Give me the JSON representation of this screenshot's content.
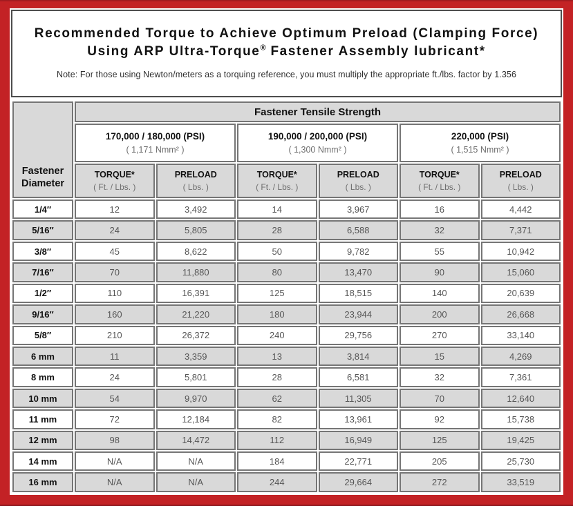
{
  "page": {
    "border_color": "#c32225",
    "title_line1": "Recommended Torque to Achieve Optimum Preload (Clamping Force)",
    "title_line2_prefix": "Using ARP Ultra-Torque",
    "title_line2_reg": "®",
    "title_line2_suffix": " Fastener Assembly lubricant*",
    "note": "Note: For those using Newton/meters as a torquing reference, you must multiply the appropriate ft./lbs. factor by 1.356"
  },
  "table": {
    "corner_header": "Fastener Diameter",
    "tensile_header": "Fastener Tensile Strength",
    "groups": [
      {
        "psi": "170,000 / 180,000 (PSI)",
        "nmm": "( 1,171 Nmm² )"
      },
      {
        "psi": "190,000 / 200,000 (PSI)",
        "nmm": "( 1,300 Nmm² )"
      },
      {
        "psi": "220,000 (PSI)",
        "nmm": "( 1,515 Nmm² )"
      }
    ],
    "sub": {
      "torque_label": "TORQUE*",
      "torque_unit": "( Ft. / Lbs. )",
      "preload_label": "PRELOAD",
      "preload_unit": "( Lbs. )"
    },
    "rows": [
      {
        "diameter": "1/4″",
        "values": [
          "12",
          "3,492",
          "14",
          "3,967",
          "16",
          "4,442"
        ]
      },
      {
        "diameter": "5/16″",
        "values": [
          "24",
          "5,805",
          "28",
          "6,588",
          "32",
          "7,371"
        ]
      },
      {
        "diameter": "3/8″",
        "values": [
          "45",
          "8,622",
          "50",
          "9,782",
          "55",
          "10,942"
        ]
      },
      {
        "diameter": "7/16″",
        "values": [
          "70",
          "11,880",
          "80",
          "13,470",
          "90",
          "15,060"
        ]
      },
      {
        "diameter": "1/2″",
        "values": [
          "110",
          "16,391",
          "125",
          "18,515",
          "140",
          "20,639"
        ]
      },
      {
        "diameter": "9/16″",
        "values": [
          "160",
          "21,220",
          "180",
          "23,944",
          "200",
          "26,668"
        ]
      },
      {
        "diameter": "5/8″",
        "values": [
          "210",
          "26,372",
          "240",
          "29,756",
          "270",
          "33,140"
        ]
      },
      {
        "diameter": "6 mm",
        "values": [
          "11",
          "3,359",
          "13",
          "3,814",
          "15",
          "4,269"
        ]
      },
      {
        "diameter": "8 mm",
        "values": [
          "24",
          "5,801",
          "28",
          "6,581",
          "32",
          "7,361"
        ]
      },
      {
        "diameter": "10 mm",
        "values": [
          "54",
          "9,970",
          "62",
          "11,305",
          "70",
          "12,640"
        ]
      },
      {
        "diameter": "11 mm",
        "values": [
          "72",
          "12,184",
          "82",
          "13,961",
          "92",
          "15,738"
        ]
      },
      {
        "diameter": "12 mm",
        "values": [
          "98",
          "14,472",
          "112",
          "16,949",
          "125",
          "19,425"
        ]
      },
      {
        "diameter": "14 mm",
        "values": [
          "N/A",
          "N/A",
          "184",
          "22,771",
          "205",
          "25,730"
        ]
      },
      {
        "diameter": "16 mm",
        "values": [
          "N/A",
          "N/A",
          "244",
          "29,664",
          "272",
          "33,519"
        ]
      }
    ]
  }
}
